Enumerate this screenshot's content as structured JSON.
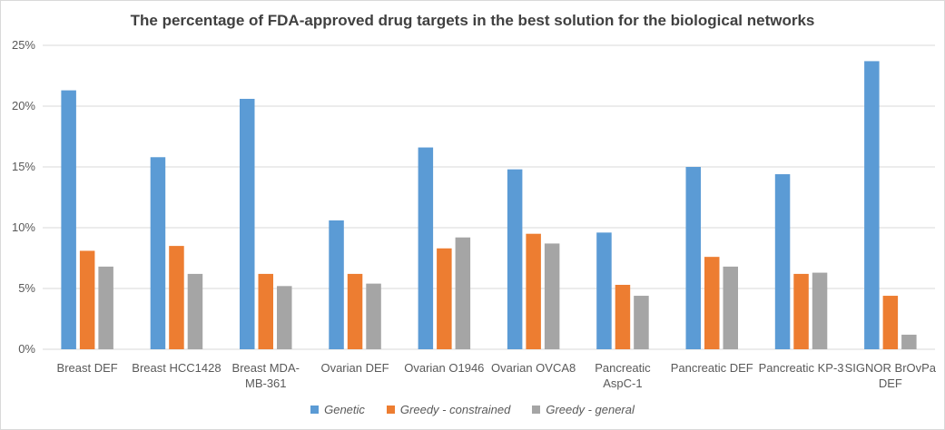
{
  "chart_data": {
    "type": "bar",
    "title": "The percentage of FDA-approved drug targets in the best solution for the biological networks",
    "categories": [
      [
        "Breast DEF"
      ],
      [
        "Breast HCC1428"
      ],
      [
        "Breast MDA-",
        "MB-361"
      ],
      [
        "Ovarian DEF"
      ],
      [
        "Ovarian O1946"
      ],
      [
        "Ovarian OVCA8"
      ],
      [
        "Pancreatic",
        "AspC-1"
      ],
      [
        "Pancreatic DEF"
      ],
      [
        "Pancreatic KP-3"
      ],
      [
        "SIGNOR BrOvPa",
        "DEF"
      ]
    ],
    "series": [
      {
        "name": "Genetic",
        "color": "#5b9bd5",
        "values": [
          21.3,
          15.8,
          20.6,
          10.6,
          16.6,
          14.8,
          9.6,
          15.0,
          14.4,
          23.7
        ]
      },
      {
        "name": "Greedy - constrained",
        "color": "#ed7d31",
        "values": [
          8.1,
          8.5,
          6.2,
          6.2,
          8.3,
          9.5,
          5.3,
          7.6,
          6.2,
          4.4
        ]
      },
      {
        "name": "Greedy - general",
        "color": "#a5a5a5",
        "values": [
          6.8,
          6.2,
          5.2,
          5.4,
          9.2,
          8.7,
          4.4,
          6.8,
          6.3,
          1.2
        ]
      }
    ],
    "y_ticks": [
      "0%",
      "5%",
      "10%",
      "15%",
      "20%",
      "25%"
    ],
    "ylim": [
      0,
      25
    ],
    "grid": true,
    "legend_position": "bottom"
  }
}
